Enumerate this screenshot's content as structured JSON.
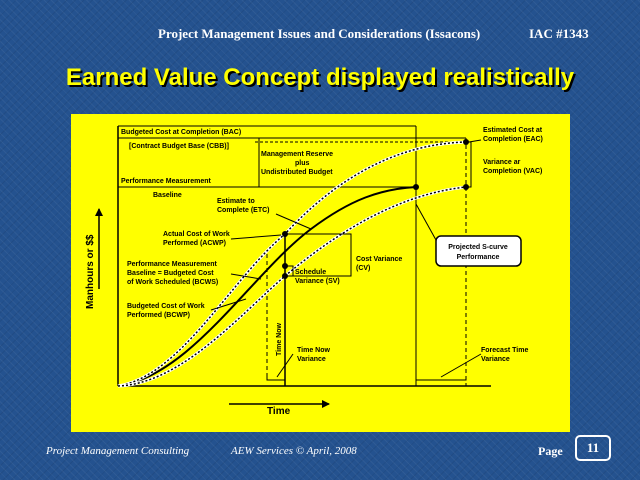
{
  "header": {
    "title": "Project Management Issues and Considerations (Issacons)",
    "code": "IAC #1343"
  },
  "slide": {
    "title": "Earned Value Concept displayed realistically"
  },
  "diagram": {
    "labels": {
      "bac": "Budgeted Cost at Completion (BAC)",
      "cbb": "[Contract Budget Base (CBB)]",
      "pmb": "Performance Measurement",
      "baseline": "Baseline",
      "mr_1": "Management Reserve",
      "mr_2": "plus",
      "mr_3": "Undistributed Budget",
      "eac_1": "Estimated Cost at",
      "eac_2": "Completion (EAC)",
      "vac_1": "Variance ar",
      "vac_2": "Completion (VAC)",
      "etc_1": "Estimate to",
      "etc_2": "Complete (ETC)",
      "acwp_1": "Actual Cost of Work",
      "acwp_2": "Performed (ACWP)",
      "bcws_1": "Performance Measurement",
      "bcws_2": "Baseline = Budgeted Cost",
      "bcws_3": "of Work Scheduled (BCWS)",
      "bcwp_1": "Budgeted Cost of Work",
      "bcwp_2": "Performed (BCWP)",
      "sv_1": "Schedule",
      "sv_2": "Variance (SV)",
      "cv_1": "Cost Variance",
      "cv_2": "(CV)",
      "scurve_1": "Projected S-curve",
      "scurve_2": "Performance",
      "time_now": "Time Now",
      "tnv_1": "Time Now",
      "tnv_2": "Variance",
      "ftv_1": "Forecast Time",
      "ftv_2": "Variance",
      "y_axis": "Manhours or $$",
      "x_axis": "Time"
    }
  },
  "footer": {
    "left": "Project Management Consulting",
    "middle": "AEW  Services © April, 2008",
    "page_label": "Page",
    "page_number": "11"
  }
}
